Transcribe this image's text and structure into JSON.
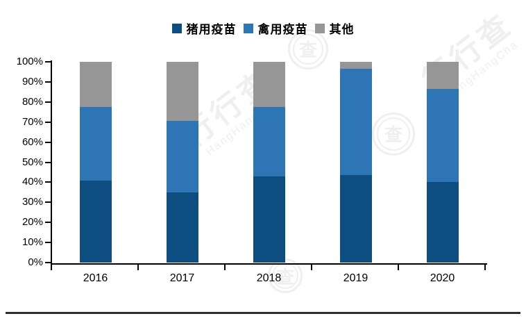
{
  "chart_data": {
    "type": "bar",
    "subtype": "stacked-percentage-column",
    "categories": [
      "2016",
      "2017",
      "2018",
      "2019",
      "2020"
    ],
    "series": [
      {
        "name": "猪用疫苗",
        "color": "#0d4d80",
        "values": [
          41,
          35,
          43,
          43.5,
          40
        ]
      },
      {
        "name": "禽用疫苗",
        "color": "#2e75b6",
        "values": [
          36.5,
          35.5,
          34.5,
          53,
          46.5
        ]
      },
      {
        "name": "其他",
        "color": "#969696",
        "values": [
          22.5,
          29.5,
          22.5,
          3.5,
          13.5
        ]
      }
    ],
    "title": "",
    "xlabel": "",
    "ylabel": "",
    "ylim": [
      0,
      100
    ],
    "yticks": [
      "0%",
      "10%",
      "20%",
      "30%",
      "40%",
      "50%",
      "60%",
      "70%",
      "80%",
      "90%",
      "100%"
    ],
    "grid": false,
    "legend_position": "top-center",
    "legend": [
      {
        "label": "猪用疫苗",
        "color": "#0d4d80"
      },
      {
        "label": "禽用疫苗",
        "color": "#2e75b6"
      },
      {
        "label": "其他",
        "color": "#969696"
      }
    ],
    "axis_color": "#000000"
  },
  "watermark": {
    "cn": "行行查",
    "en": "HangHangCha",
    "seal_glyph": "查"
  }
}
